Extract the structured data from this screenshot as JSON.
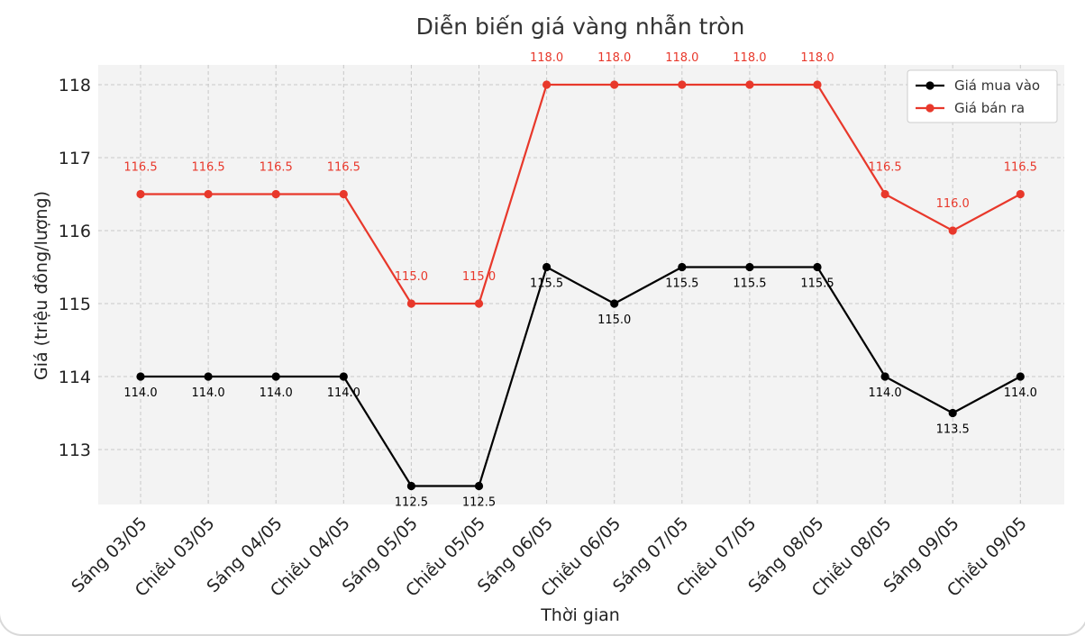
{
  "chart_data": {
    "type": "line",
    "title": "Diễn biến giá vàng nhẫn tròn",
    "xlabel": "Thời gian",
    "ylabel": "Giá (triệu đồng/lượng)",
    "categories": [
      "Sáng 03/05",
      "Chiều 03/05",
      "Sáng 04/05",
      "Chiều 04/05",
      "Sáng 05/05",
      "Chiều 05/05",
      "Sáng 06/05",
      "Chiều 06/05",
      "Sáng 07/05",
      "Chiều 07/05",
      "Sáng 08/05",
      "Chiều 08/05",
      "Sáng 09/05",
      "Chiều 09/05"
    ],
    "yticks": [
      113,
      114,
      115,
      116,
      117,
      118
    ],
    "ylim": [
      112.3,
      118.27
    ],
    "grid": true,
    "legend_position": "top-right",
    "series": [
      {
        "name": "Giá mua vào",
        "color": "#000000",
        "values": [
          114.0,
          114.0,
          114.0,
          114.0,
          112.5,
          112.5,
          115.5,
          115.0,
          115.5,
          115.5,
          115.5,
          114.0,
          113.5,
          114.0
        ],
        "labels": [
          "114.0",
          "114.0",
          "114.0",
          "114.0",
          "112.5",
          "112.5",
          "115.5",
          "115.0",
          "115.5",
          "115.5",
          "115.5",
          "114.0",
          "113.5",
          "114.0"
        ],
        "label_position": "below"
      },
      {
        "name": "Giá bán ra",
        "color": "#e8382b",
        "values": [
          116.5,
          116.5,
          116.5,
          116.5,
          115.0,
          115.0,
          118.0,
          118.0,
          118.0,
          118.0,
          118.0,
          116.5,
          116.0,
          116.5
        ],
        "labels": [
          "116.5",
          "116.5",
          "116.5",
          "116.5",
          "115.0",
          "115.0",
          "118.0",
          "118.0",
          "118.0",
          "118.0",
          "118.0",
          "116.5",
          "116.0",
          "116.5"
        ],
        "label_position": "above"
      }
    ]
  }
}
